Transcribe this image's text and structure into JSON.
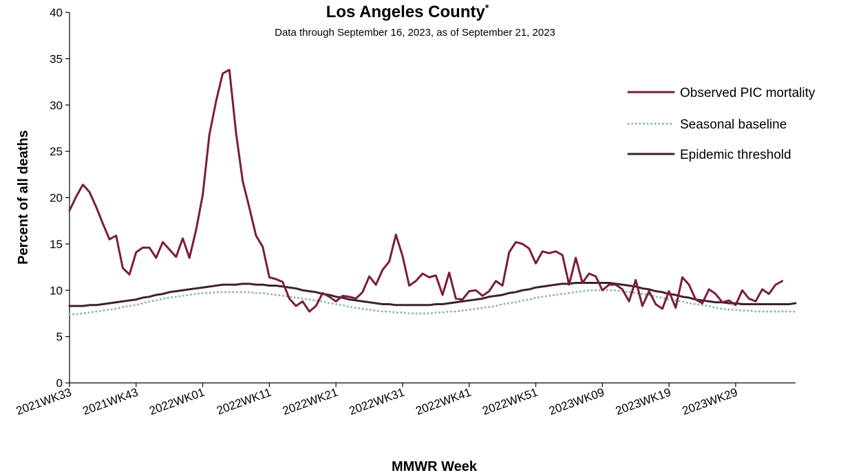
{
  "chart_data": {
    "type": "line",
    "title": "Los Angeles County",
    "title_marker": "*",
    "subtitle": "Data through September 16, 2023, as of September 21, 2023",
    "xlabel": "MMWR Week",
    "ylabel": "Percent of all deaths",
    "ylim": [
      0,
      40
    ],
    "yticks": [
      0,
      5,
      10,
      15,
      20,
      25,
      30,
      35,
      40
    ],
    "x_tick_labels": [
      "2021WK33",
      "2021WK43",
      "2022WK01",
      "2022WK11",
      "2022WK21",
      "2022WK31",
      "2022WK41",
      "2022WK51",
      "2023WK09",
      "2023WK19",
      "2023WK29"
    ],
    "x_tick_index": [
      0,
      10,
      20,
      30,
      40,
      50,
      60,
      70,
      80,
      90,
      100
    ],
    "n_weeks": 110,
    "grid": false,
    "legend_position": "top-right",
    "series": [
      {
        "name": "Observed PIC mortality",
        "color": "#7b1c3d",
        "style": "solid",
        "values": [
          18.6,
          20.1,
          21.4,
          20.6,
          19.0,
          17.2,
          15.5,
          15.9,
          12.4,
          11.7,
          14.1,
          14.6,
          14.6,
          13.5,
          15.2,
          14.4,
          13.6,
          15.6,
          13.5,
          16.5,
          20.3,
          26.8,
          30.4,
          33.4,
          33.8,
          27.0,
          21.8,
          18.9,
          15.9,
          14.7,
          11.4,
          11.2,
          10.9,
          9.1,
          8.3,
          8.8,
          7.7,
          8.3,
          9.7,
          9.3,
          8.8,
          9.4,
          9.3,
          9.1,
          9.8,
          11.5,
          10.6,
          12.2,
          13.1,
          16.0,
          13.7,
          10.5,
          11.0,
          11.8,
          11.4,
          11.6,
          9.5,
          11.9,
          9.1,
          9.0,
          9.9,
          10.0,
          9.4,
          9.9,
          11.0,
          10.5,
          14.1,
          15.2,
          15.0,
          14.5,
          12.9,
          14.2,
          14.0,
          14.2,
          13.8,
          10.6,
          13.5,
          10.8,
          11.8,
          11.5,
          10.0,
          10.6,
          10.6,
          10.1,
          8.8,
          11.1,
          8.3,
          9.9,
          8.5,
          8.0,
          9.9,
          8.1,
          11.4,
          10.6,
          9.0,
          8.6,
          10.1,
          9.6,
          8.7,
          8.9,
          8.4,
          10.0,
          9.1,
          8.8,
          10.1,
          9.6,
          10.6,
          11.0
        ]
      },
      {
        "name": "Seasonal baseline",
        "color": "#8fb5a0",
        "style": "dotted",
        "values": [
          7.4,
          7.4,
          7.5,
          7.6,
          7.7,
          7.8,
          7.9,
          8.0,
          8.2,
          8.3,
          8.4,
          8.6,
          8.8,
          8.9,
          9.1,
          9.2,
          9.3,
          9.4,
          9.5,
          9.6,
          9.7,
          9.7,
          9.8,
          9.8,
          9.8,
          9.8,
          9.8,
          9.8,
          9.7,
          9.7,
          9.6,
          9.5,
          9.4,
          9.3,
          9.2,
          9.1,
          9.0,
          8.9,
          8.8,
          8.6,
          8.5,
          8.4,
          8.2,
          8.1,
          8.0,
          7.9,
          7.8,
          7.7,
          7.7,
          7.6,
          7.6,
          7.5,
          7.5,
          7.5,
          7.5,
          7.6,
          7.6,
          7.7,
          7.7,
          7.8,
          7.9,
          8.0,
          8.1,
          8.2,
          8.3,
          8.5,
          8.6,
          8.7,
          8.9,
          9.0,
          9.2,
          9.3,
          9.4,
          9.5,
          9.6,
          9.7,
          9.8,
          9.9,
          10.0,
          10.0,
          10.0,
          10.0,
          10.0,
          9.9,
          9.8,
          9.7,
          9.6,
          9.5,
          9.3,
          9.2,
          9.0,
          8.9,
          8.8,
          8.6,
          8.5,
          8.4,
          8.3,
          8.1,
          8.0,
          7.9,
          7.9,
          7.8,
          7.8,
          7.7,
          7.7,
          7.7,
          7.7,
          7.7,
          7.7,
          7.7
        ]
      },
      {
        "name": "Epidemic threshold",
        "color": "#3d2034",
        "style": "solid",
        "values": [
          8.3,
          8.3,
          8.3,
          8.4,
          8.4,
          8.5,
          8.6,
          8.7,
          8.8,
          8.9,
          9.0,
          9.2,
          9.3,
          9.5,
          9.6,
          9.8,
          9.9,
          10.0,
          10.1,
          10.2,
          10.3,
          10.4,
          10.5,
          10.6,
          10.6,
          10.6,
          10.7,
          10.7,
          10.6,
          10.6,
          10.5,
          10.5,
          10.4,
          10.3,
          10.2,
          10.0,
          9.9,
          9.8,
          9.6,
          9.5,
          9.3,
          9.2,
          9.0,
          8.9,
          8.8,
          8.7,
          8.6,
          8.5,
          8.5,
          8.4,
          8.4,
          8.4,
          8.4,
          8.4,
          8.4,
          8.5,
          8.5,
          8.6,
          8.7,
          8.8,
          8.9,
          9.0,
          9.1,
          9.3,
          9.4,
          9.5,
          9.7,
          9.8,
          10.0,
          10.1,
          10.3,
          10.4,
          10.5,
          10.6,
          10.7,
          10.7,
          10.8,
          10.8,
          10.8,
          10.8,
          10.8,
          10.8,
          10.7,
          10.6,
          10.5,
          10.4,
          10.2,
          10.1,
          9.9,
          9.8,
          9.6,
          9.5,
          9.3,
          9.2,
          9.0,
          8.9,
          8.8,
          8.7,
          8.7,
          8.6,
          8.6,
          8.5,
          8.5,
          8.5,
          8.5,
          8.5,
          8.5,
          8.5,
          8.5,
          8.6
        ]
      }
    ]
  }
}
